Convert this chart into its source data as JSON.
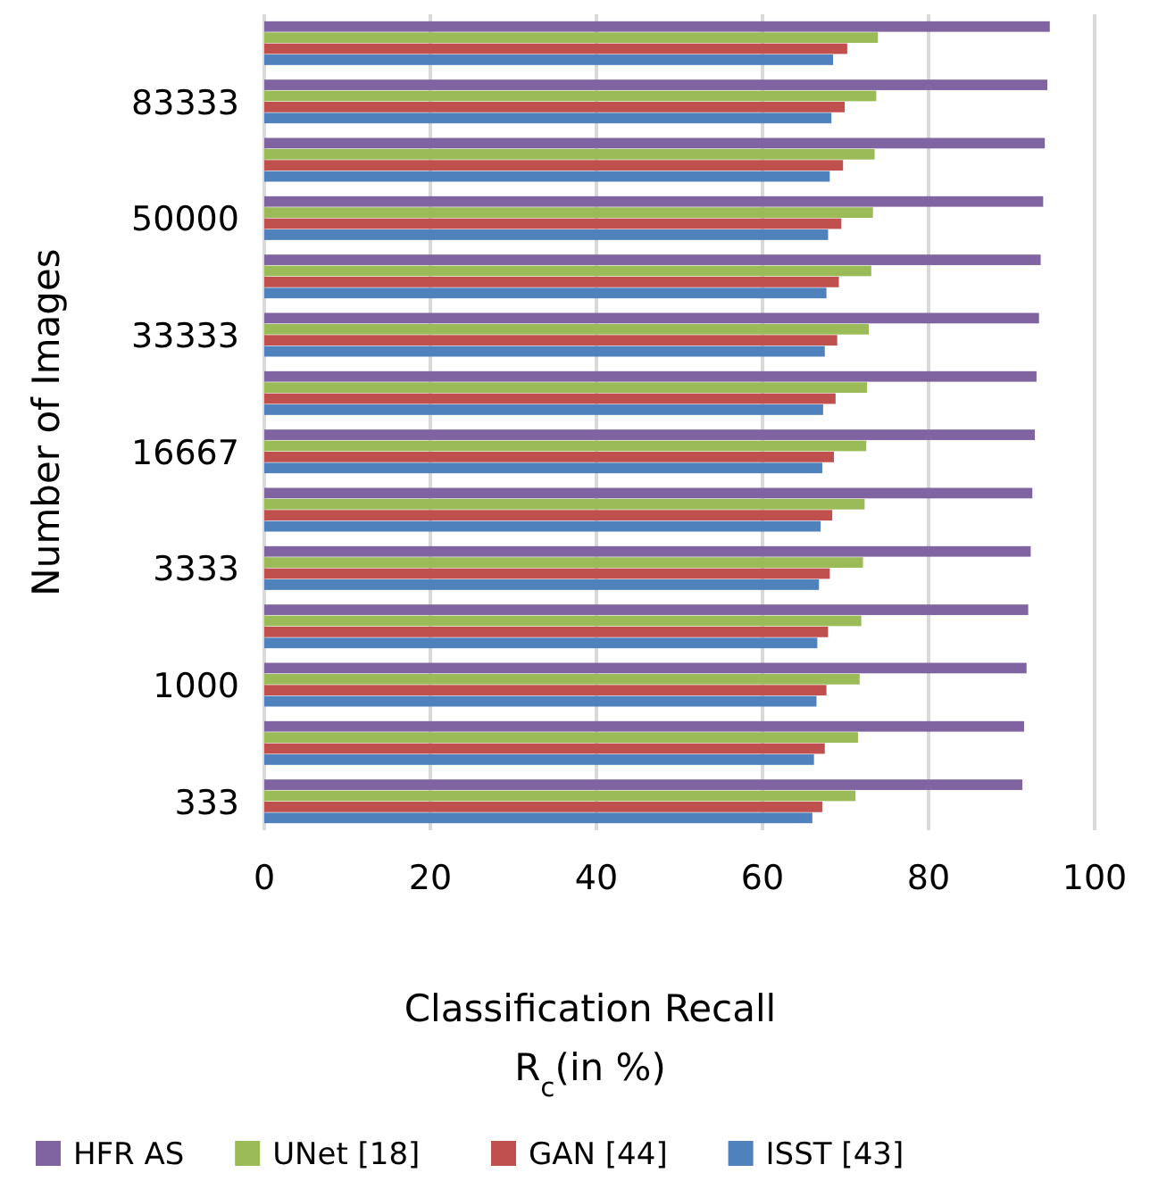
{
  "chart_data": {
    "type": "bar",
    "orientation": "horizontal",
    "xlabel": "Classification Recall\nR$_{c}$(in %)",
    "ylabel": "Number of Images",
    "categories": [
      null,
      "83333",
      null,
      "50000",
      null,
      "33333",
      null,
      "16667",
      null,
      "3333",
      null,
      "1000",
      null,
      "333"
    ],
    "series": [
      {
        "name": "HFR AS",
        "color": "#8064a2",
        "values": [
          94.6,
          94.3,
          94.0,
          93.8,
          93.5,
          93.3,
          93.0,
          92.8,
          92.5,
          92.3,
          92.0,
          91.8,
          91.5,
          91.3
        ]
      },
      {
        "name": "UNet [18]",
        "color": "#9bbb59",
        "values": [
          73.9,
          73.7,
          73.5,
          73.3,
          73.1,
          72.8,
          72.6,
          72.5,
          72.3,
          72.1,
          71.9,
          71.7,
          71.5,
          71.2
        ]
      },
      {
        "name": "GAN [44]",
        "color": "#c0504d",
        "values": [
          70.2,
          69.9,
          69.7,
          69.5,
          69.2,
          69.0,
          68.8,
          68.6,
          68.4,
          68.1,
          67.9,
          67.7,
          67.5,
          67.2
        ]
      },
      {
        "name": "ISST [43]",
        "color": "#4f81bd",
        "values": [
          68.5,
          68.3,
          68.1,
          67.9,
          67.7,
          67.5,
          67.3,
          67.2,
          67.0,
          66.8,
          66.6,
          66.5,
          66.2,
          66.0
        ]
      }
    ],
    "xlim": [
      0,
      100
    ],
    "xticks": [
      0,
      20,
      40,
      60,
      80,
      100
    ],
    "grid": "x",
    "legend": "bottom"
  }
}
